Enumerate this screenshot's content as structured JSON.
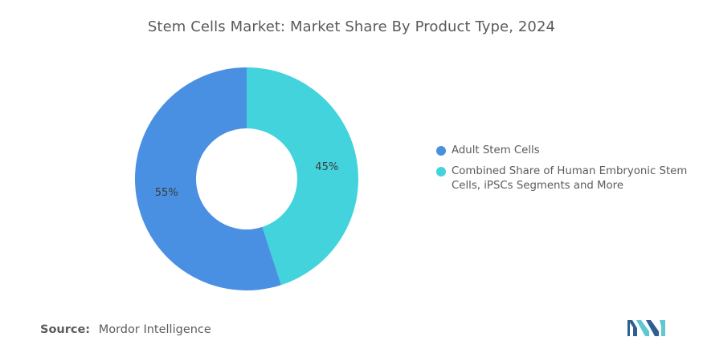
{
  "title": "Stem Cells Market: Market Share By Product Type, 2024",
  "chart_data": {
    "type": "pie",
    "variant": "donut",
    "slices": [
      {
        "label": "Adult Stem Cells",
        "value": 55,
        "display": "55%",
        "color": "#4a90e2"
      },
      {
        "label": "Combined Share of Human Embryonic Stem Cells, iPSCs Segments and More",
        "value": 45,
        "display": "45%",
        "color": "#42d3dc"
      }
    ],
    "legend_position": "right"
  },
  "legend": {
    "items": [
      {
        "label_line1": "Adult Stem Cells",
        "label_line2": ""
      },
      {
        "label_line1": "Combined Share of Human Embryonic Stem",
        "label_line2": "Cells, iPSCs Segments and More"
      }
    ]
  },
  "source": {
    "label": "Source:",
    "value": "Mordor Intelligence"
  },
  "logo": {
    "colors": [
      "#2f5f8f",
      "#5fc7d0"
    ]
  }
}
